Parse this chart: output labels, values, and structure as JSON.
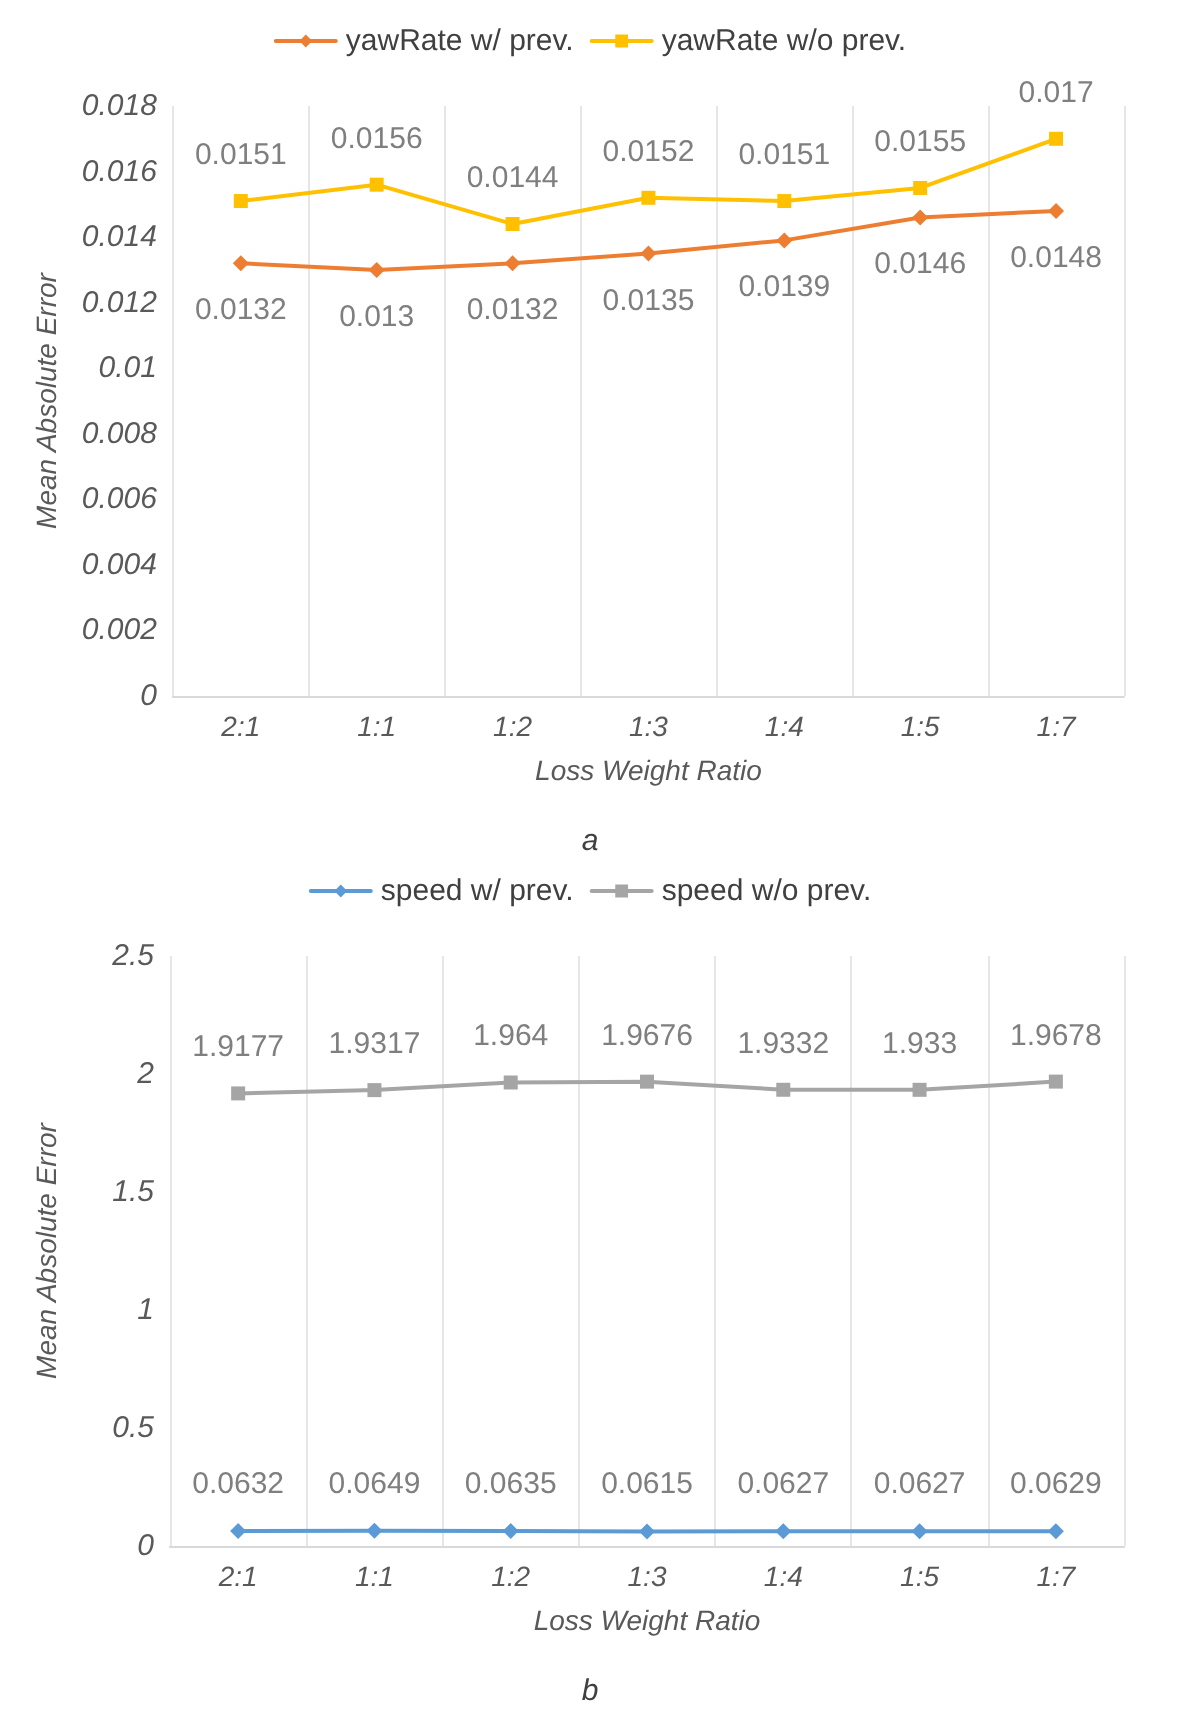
{
  "chart_data": [
    {
      "type": "line",
      "xlabel": "Loss Weight Ratio",
      "ylabel": "Mean Absolute Error",
      "categories": [
        "2:1",
        "1:1",
        "1:2",
        "1:3",
        "1:4",
        "1:5",
        "1:7"
      ],
      "series": [
        {
          "name": "yawRate w/ prev.",
          "color": "#ed7d31",
          "marker": "diamond",
          "values": [
            0.0132,
            0.013,
            0.0132,
            0.0135,
            0.0139,
            0.0146,
            0.0148
          ]
        },
        {
          "name": "yawRate w/o prev.",
          "color": "#ffc000",
          "marker": "square",
          "values": [
            0.0151,
            0.0156,
            0.0144,
            0.0152,
            0.0151,
            0.0155,
            0.017
          ]
        }
      ],
      "ylim": [
        0,
        0.018
      ],
      "yticks": [
        0,
        0.002,
        0.004,
        0.006,
        0.008,
        0.01,
        0.012,
        0.014,
        0.016,
        0.018
      ],
      "grid": "x",
      "legend": "top",
      "data_labels": true,
      "annotations": [
        "a"
      ]
    },
    {
      "type": "line",
      "xlabel": "Loss Weight Ratio",
      "ylabel": "Mean Absolute Error",
      "categories": [
        "2:1",
        "1:1",
        "1:2",
        "1:3",
        "1:4",
        "1:5",
        "1:7"
      ],
      "series": [
        {
          "name": "speed w/ prev.",
          "color": "#5b9bd5",
          "marker": "diamond",
          "values": [
            0.0632,
            0.0649,
            0.0635,
            0.0615,
            0.0627,
            0.0627,
            0.0629
          ]
        },
        {
          "name": "speed w/o prev.",
          "color": "#a5a5a5",
          "marker": "square",
          "values": [
            1.9177,
            1.9317,
            1.964,
            1.9676,
            1.9332,
            1.933,
            1.9678
          ]
        }
      ],
      "ylim": [
        0,
        2.5
      ],
      "yticks": [
        0,
        0.5,
        1,
        1.5,
        2,
        2.5
      ],
      "grid": "x",
      "legend": "top",
      "data_labels": true,
      "annotations": [
        "b"
      ]
    }
  ]
}
